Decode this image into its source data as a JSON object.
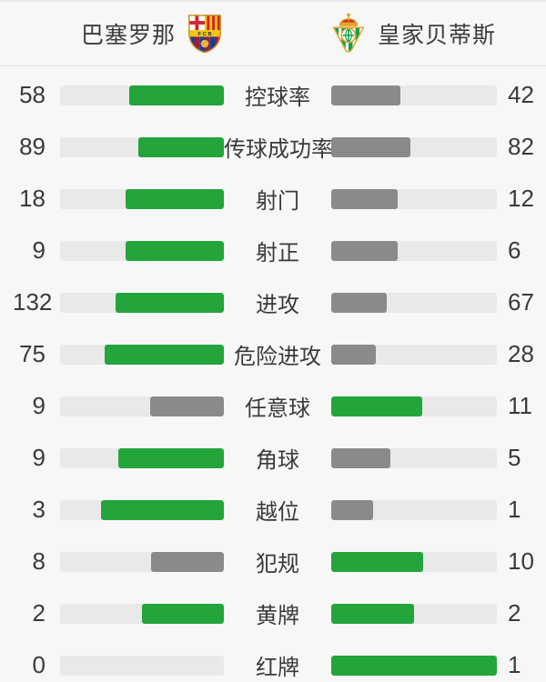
{
  "header": {
    "home_team": "巴塞罗那",
    "away_team": "皇家贝蒂斯",
    "home_crest_icon": "fc-barcelona-crest",
    "away_crest_icon": "real-betis-crest"
  },
  "colors": {
    "green": "#23A53C",
    "gray": "#8A8A8A",
    "track": "#E9E9E9",
    "background": "#F7F7F7",
    "text": "#3A3A3A"
  },
  "stats": [
    {
      "label": "控球率",
      "home": 58,
      "away": 42
    },
    {
      "label": "传球成功率",
      "home": 89,
      "away": 82
    },
    {
      "label": "射门",
      "home": 18,
      "away": 12
    },
    {
      "label": "射正",
      "home": 9,
      "away": 6
    },
    {
      "label": "进攻",
      "home": 132,
      "away": 67
    },
    {
      "label": "危险进攻",
      "home": 75,
      "away": 28
    },
    {
      "label": "任意球",
      "home": 9,
      "away": 11
    },
    {
      "label": "角球",
      "home": 9,
      "away": 5
    },
    {
      "label": "越位",
      "home": 3,
      "away": 1
    },
    {
      "label": "犯规",
      "home": 8,
      "away": 10
    },
    {
      "label": "黄牌",
      "home": 2,
      "away": 2
    },
    {
      "label": "红牌",
      "home": 0,
      "away": 1
    }
  ],
  "chart_data": {
    "type": "bar",
    "orientation": "horizontal-paired",
    "categories": [
      "控球率",
      "传球成功率",
      "射门",
      "射正",
      "进攻",
      "危险进攻",
      "任意球",
      "角球",
      "越位",
      "犯规",
      "黄牌",
      "红牌"
    ],
    "series": [
      {
        "name": "巴塞罗那",
        "values": [
          58,
          89,
          18,
          9,
          132,
          75,
          9,
          9,
          3,
          8,
          2,
          0
        ]
      },
      {
        "name": "皇家贝蒂斯",
        "values": [
          42,
          82,
          12,
          6,
          67,
          28,
          11,
          5,
          1,
          10,
          2,
          1
        ]
      }
    ],
    "legend_position": "top",
    "notes": "Each bar fill fraction = value/(home+away); the side with the higher (or equal) value is green, the lower side is gray; home bars grow leftward from center, away bars grow rightward."
  }
}
